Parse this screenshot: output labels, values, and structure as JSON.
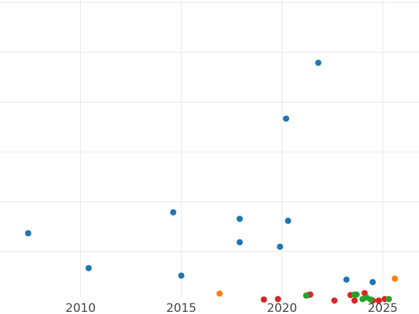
{
  "chart_data": {
    "type": "scatter",
    "title": "",
    "xlabel": "",
    "ylabel": "",
    "xlim": [
      2006.0,
      2026.8
    ],
    "ylim": [
      0.1,
      6.05
    ],
    "x_ticks": [
      2010,
      2015,
      2020,
      2025
    ],
    "y_gridlines": [
      1,
      2,
      3,
      4,
      5,
      6
    ],
    "grid": true,
    "y_tick_labels_visible": false,
    "legend": "none",
    "series": [
      {
        "color": "#1f77b4",
        "points": [
          [
            2007.4,
            1.37
          ],
          [
            2010.4,
            0.67
          ],
          [
            2014.6,
            1.79
          ],
          [
            2015.0,
            0.52
          ],
          [
            2017.9,
            1.66
          ],
          [
            2017.9,
            1.19
          ],
          [
            2019.9,
            1.1
          ],
          [
            2020.2,
            3.67
          ],
          [
            2020.3,
            1.62
          ],
          [
            2021.8,
            4.79
          ],
          [
            2023.2,
            0.44
          ],
          [
            2024.5,
            0.39
          ]
        ]
      },
      {
        "color": "#ff7f0e",
        "points": [
          [
            2016.9,
            0.16
          ],
          [
            2025.6,
            0.46
          ]
        ]
      },
      {
        "color": "#d62728",
        "points": [
          [
            2019.1,
            0.04
          ],
          [
            2019.8,
            0.05
          ],
          [
            2021.3,
            0.13
          ],
          [
            2021.4,
            0.14
          ],
          [
            2022.6,
            0.02
          ],
          [
            2023.4,
            0.13
          ],
          [
            2023.6,
            0.02
          ],
          [
            2024.1,
            0.17
          ],
          [
            2024.5,
            0.02
          ],
          [
            2024.8,
            0.02
          ],
          [
            2025.1,
            0.05
          ]
        ]
      },
      {
        "color": "#2ca02c",
        "points": [
          [
            2021.2,
            0.12
          ],
          [
            2023.6,
            0.14
          ],
          [
            2023.7,
            0.14
          ],
          [
            2024.0,
            0.05
          ],
          [
            2024.2,
            0.08
          ],
          [
            2024.4,
            0.04
          ],
          [
            2025.3,
            0.05
          ]
        ]
      }
    ]
  }
}
